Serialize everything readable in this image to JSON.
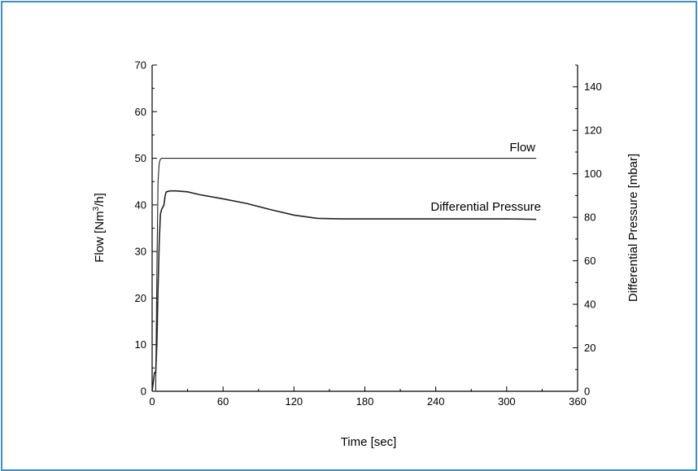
{
  "chart_data": {
    "type": "line",
    "xlabel": "Time [sec]",
    "ylabel_left_parts": [
      "Flow [Nm",
      "3",
      "/h]"
    ],
    "ylabel_right": "Differential Pressure [mbar]",
    "xlim": [
      0,
      360
    ],
    "ylim_left": [
      0,
      70
    ],
    "ylim_right": [
      0,
      150
    ],
    "x_ticks": [
      "0",
      "60",
      "120",
      "180",
      "240",
      "300",
      "360"
    ],
    "y_left_ticks": [
      "0",
      "10",
      "20",
      "30",
      "40",
      "50",
      "60",
      "70"
    ],
    "y_right_ticks": [
      "0",
      "20",
      "40",
      "60",
      "80",
      "100",
      "120",
      "140"
    ],
    "grid": false,
    "series": [
      {
        "name": "Flow",
        "axis": "left",
        "x": [
          0,
          3,
          4,
          5,
          6,
          7,
          8,
          10,
          15,
          30,
          60,
          90,
          120,
          150,
          180,
          210,
          240,
          270,
          300,
          325
        ],
        "y": [
          0,
          0,
          25,
          45,
          49,
          49.8,
          50,
          50,
          50,
          50,
          50,
          50,
          50,
          50,
          50,
          50,
          50,
          50,
          50,
          50
        ]
      },
      {
        "name": "Differential Pressure",
        "axis": "left",
        "x": [
          0,
          1,
          2,
          3,
          4,
          5,
          6,
          7,
          8,
          9,
          10,
          11,
          12,
          15,
          20,
          30,
          40,
          60,
          80,
          100,
          120,
          140,
          160,
          180,
          200,
          240,
          280,
          300,
          325
        ],
        "y": [
          0,
          2,
          4,
          4,
          10,
          22,
          32,
          38,
          39,
          39.5,
          40,
          42,
          42.8,
          43,
          43,
          42.8,
          42.2,
          41.3,
          40.3,
          39,
          37.8,
          37.1,
          37,
          37,
          37,
          37,
          37,
          37,
          36.9
        ]
      }
    ]
  }
}
